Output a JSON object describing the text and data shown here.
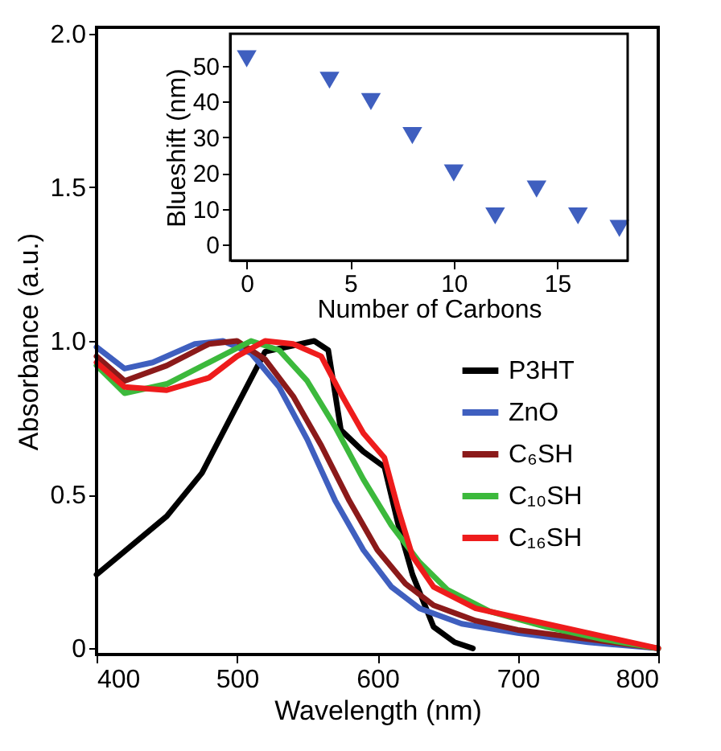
{
  "chart_data": [
    {
      "type": "line",
      "xlabel": "Wavelength (nm)",
      "ylabel": "Absorbance (a.u.)",
      "xlim": [
        400,
        800
      ],
      "ylim": [
        -0.02,
        2.02
      ],
      "xticks": [
        400,
        500,
        600,
        700,
        800
      ],
      "yticks": [
        0,
        0.5,
        {
          "value": 1,
          "label": "1.0"
        },
        1.5,
        {
          "value": 2,
          "label": "2.0"
        }
      ],
      "legend": "right",
      "line_style": "solid",
      "marker": "none",
      "series": [
        {
          "name": "P3HT",
          "color": "#000000",
          "x": [
            400,
            450,
            475,
            500,
            520,
            540,
            555,
            565,
            574,
            590,
            605,
            615,
            625,
            640,
            655,
            668
          ],
          "values": [
            0.24,
            0.43,
            0.57,
            0.79,
            0.965,
            0.985,
            1.0,
            0.97,
            0.71,
            0.64,
            0.59,
            0.4,
            0.24,
            0.07,
            0.02,
            0.0
          ]
        },
        {
          "name": "ZnO",
          "color": "#3f5fbf",
          "x": [
            400,
            420,
            440,
            470,
            490,
            510,
            530,
            550,
            570,
            590,
            610,
            630,
            660,
            700,
            750,
            800
          ],
          "values": [
            0.98,
            0.91,
            0.93,
            0.99,
            1.0,
            0.96,
            0.85,
            0.68,
            0.48,
            0.32,
            0.2,
            0.13,
            0.08,
            0.05,
            0.02,
            0.0
          ]
        },
        {
          "name": "C₆SH",
          "color": "#8b1a1a",
          "x": [
            400,
            420,
            450,
            480,
            500,
            520,
            540,
            560,
            580,
            600,
            620,
            640,
            670,
            700,
            750,
            800
          ],
          "values": [
            0.95,
            0.87,
            0.92,
            0.99,
            1.0,
            0.94,
            0.82,
            0.66,
            0.48,
            0.32,
            0.21,
            0.14,
            0.09,
            0.06,
            0.03,
            0.0
          ]
        },
        {
          "name": "C₁₀SH",
          "color": "#3cb93c",
          "x": [
            400,
            420,
            450,
            480,
            510,
            530,
            550,
            570,
            590,
            610,
            630,
            650,
            680,
            720,
            760,
            800
          ],
          "values": [
            0.92,
            0.83,
            0.86,
            0.93,
            1.0,
            0.97,
            0.87,
            0.72,
            0.55,
            0.4,
            0.28,
            0.19,
            0.12,
            0.07,
            0.03,
            0.0
          ]
        },
        {
          "name": "C₁₆SH",
          "color": "#ee1c1c",
          "x": [
            400,
            420,
            450,
            480,
            500,
            520,
            540,
            560,
            575,
            590,
            605,
            615,
            625,
            640,
            670,
            720,
            760,
            800
          ],
          "values": [
            0.93,
            0.85,
            0.84,
            0.88,
            0.95,
            1.0,
            0.99,
            0.95,
            0.82,
            0.7,
            0.62,
            0.45,
            0.3,
            0.2,
            0.13,
            0.08,
            0.04,
            0.0
          ]
        }
      ]
    },
    {
      "type": "scatter",
      "xlabel": "Number of Carbons",
      "ylabel": "Blueshift (nm)",
      "xlim": [
        -0.8,
        18.4
      ],
      "ylim": [
        -4.5,
        59
      ],
      "xticks": [
        0,
        5,
        10,
        15
      ],
      "yticks": [
        0,
        10,
        20,
        30,
        40,
        50
      ],
      "marker": "triangle",
      "series": [
        {
          "color": "#3f5fbf",
          "x": [
            0,
            4,
            6,
            8,
            10,
            12,
            14,
            16,
            18
          ],
          "values": [
            52,
            46,
            40,
            30.5,
            20,
            8,
            15.5,
            8,
            4.5
          ]
        }
      ]
    }
  ]
}
